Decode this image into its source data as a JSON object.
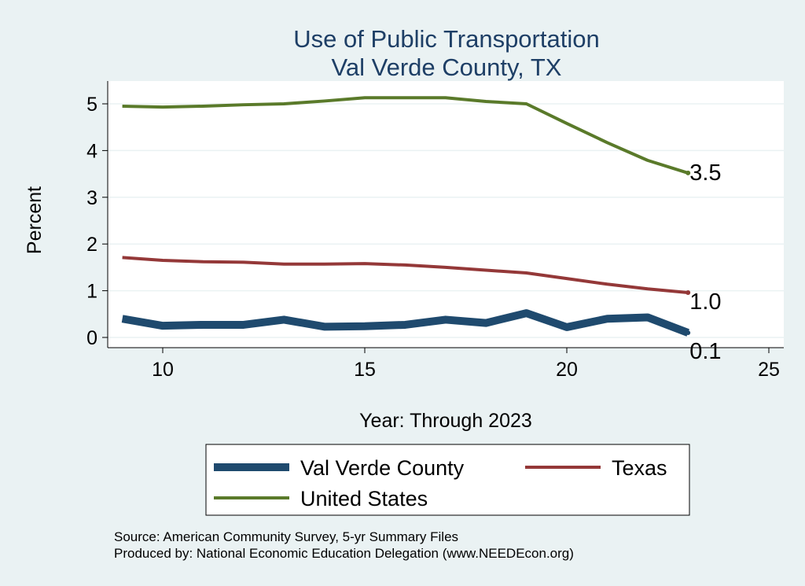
{
  "chart_data": {
    "type": "line",
    "title": "Use of Public Transportation",
    "subtitle": "Val Verde County, TX",
    "xlabel": "Year: Through 2023",
    "ylabel": "Percent",
    "xlim": [
      8.6,
      25.4
    ],
    "ylim": [
      -0.23,
      5.5
    ],
    "xticks": [
      10,
      15,
      20,
      25
    ],
    "yticks": [
      0,
      1,
      2,
      3,
      4,
      5
    ],
    "grid": true,
    "legend_position": "bottom",
    "x": [
      9,
      10,
      11,
      12,
      13,
      14,
      15,
      16,
      17,
      18,
      19,
      20,
      21,
      22,
      23
    ],
    "series": [
      {
        "name": "Val Verde County",
        "color": "#1f4a6e",
        "width": 10,
        "values": [
          0.4,
          0.25,
          0.27,
          0.27,
          0.38,
          0.23,
          0.24,
          0.27,
          0.38,
          0.31,
          0.52,
          0.22,
          0.4,
          0.43,
          0.1
        ],
        "end_label": "0.1"
      },
      {
        "name": "Texas",
        "color": "#943838",
        "width": 4,
        "values": [
          1.71,
          1.65,
          1.62,
          1.61,
          1.57,
          1.57,
          1.58,
          1.55,
          1.5,
          1.44,
          1.38,
          1.26,
          1.14,
          1.04,
          0.96
        ],
        "end_label": "1.0"
      },
      {
        "name": "United States",
        "color": "#5a7a2a",
        "width": 4,
        "values": [
          4.95,
          4.93,
          4.95,
          4.98,
          5.0,
          5.06,
          5.13,
          5.13,
          5.13,
          5.05,
          5.0,
          4.58,
          4.17,
          3.79,
          3.52
        ],
        "end_label": "3.5"
      }
    ],
    "notes": [
      "Source: American Community Survey, 5-yr Summary Files",
      "Produced by: National Economic Education Delegation (www.NEEDEcon.org)"
    ]
  }
}
